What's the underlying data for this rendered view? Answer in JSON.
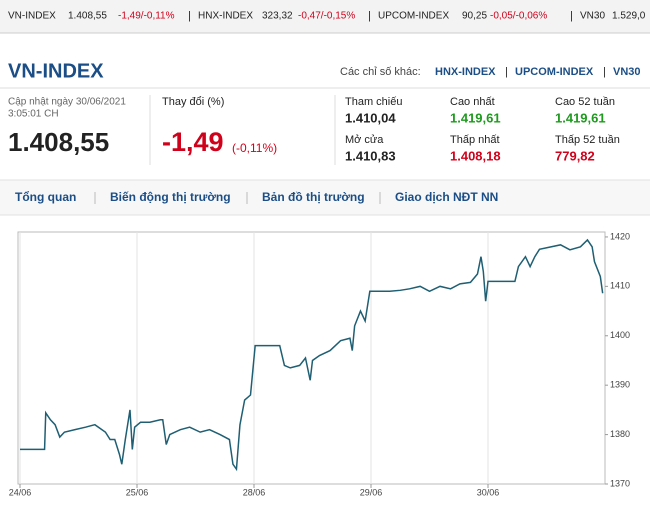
{
  "ticker": [
    {
      "name": "VN-INDEX",
      "value": "1.408,55",
      "change": "-1,49/-0,11%"
    },
    {
      "name": "HNX-INDEX",
      "value": "323,32",
      "change": "-0,47/-0,15%"
    },
    {
      "name": "UPCOM-INDEX",
      "value": "90,25",
      "change": "-0,05/-0,06%"
    },
    {
      "name": "VN30",
      "value": "1.529,0"
    }
  ],
  "header": {
    "title": "VN-INDEX",
    "others_label": "Các chỉ số khác:",
    "links": [
      "HNX-INDEX",
      "UPCOM-INDEX",
      "VN30"
    ]
  },
  "stats": {
    "updated": "Cập nhật ngày 30/06/2021",
    "time": "3:05:01 CH",
    "value": "1.408,55",
    "change_label": "Thay đổi (%)",
    "change": "-1,49",
    "change_pct": "(-0,11%)",
    "items": [
      {
        "label": "Tham chiếu",
        "value": "1.410,04"
      },
      {
        "label": "Cao nhất",
        "value": "1.419,61"
      },
      {
        "label": "Cao 52 tuần",
        "value": "1.419,61"
      },
      {
        "label": "Mở cửa",
        "value": "1.410,83"
      },
      {
        "label": "Thấp nhất",
        "value": "1.408,18"
      },
      {
        "label": "Thấp 52 tuần",
        "value": "779,82"
      }
    ]
  },
  "tabs": [
    "Tổng quan",
    "Biến động thị trường",
    "Bản đồ thị trường",
    "Giao dịch NĐT NN"
  ],
  "chart_data": {
    "type": "line",
    "color": "#1f5f73",
    "x": [
      0,
      0.21,
      0.22,
      0.26,
      0.3,
      0.34,
      0.38,
      0.47,
      0.56,
      0.64,
      0.73,
      0.77,
      0.81,
      0.85,
      0.87,
      0.9,
      0.94,
      0.96,
      0.98,
      1.03,
      1.11,
      1.2,
      1.22,
      1.25,
      1.28,
      1.37,
      1.45,
      1.54,
      1.62,
      1.71,
      1.79,
      1.82,
      1.85,
      1.88,
      1.92,
      1.97,
      2.01,
      2.22,
      2.26,
      2.31,
      2.39,
      2.44,
      2.48,
      2.5,
      2.56,
      2.65,
      2.74,
      2.82,
      2.84,
      2.86,
      2.91,
      2.95,
      2.99,
      3.16,
      3.25,
      3.33,
      3.42,
      3.5,
      3.59,
      3.68,
      3.76,
      3.85,
      3.91,
      3.94,
      3.96,
      3.98,
      4.0,
      4.23,
      4.26,
      4.32,
      4.36,
      4.4,
      4.44,
      4.62,
      4.7,
      4.79,
      4.85,
      4.89,
      4.91,
      4.96,
      4.98
    ],
    "values": [
      1377,
      1377,
      1384.4,
      1383,
      1382,
      1379.5,
      1380.5,
      1381,
      1381.5,
      1382,
      1380.5,
      1379,
      1379,
      1376,
      1374,
      1379,
      1385,
      1377,
      1381.5,
      1382.5,
      1382.5,
      1383,
      1383,
      1378,
      1380,
      1381,
      1381.5,
      1380.5,
      1381,
      1380,
      1379,
      1374,
      1373,
      1382,
      1387,
      1388,
      1398,
      1398,
      1394,
      1393.5,
      1394,
      1395.5,
      1391,
      1395,
      1396,
      1397,
      1399,
      1399.5,
      1397,
      1402,
      1405,
      1403,
      1409,
      1409,
      1409.2,
      1409.5,
      1410,
      1409,
      1410,
      1409.5,
      1410.5,
      1410.8,
      1412.5,
      1416,
      1413,
      1407,
      1411,
      1411,
      1414,
      1416,
      1414,
      1416,
      1417.5,
      1418.4,
      1417.4,
      1418,
      1419.4,
      1418,
      1415,
      1412,
      1408.6
    ],
    "xlim": [
      0,
      5
    ],
    "xticks": [
      {
        "value": 0,
        "label": "24/06"
      },
      {
        "value": 1,
        "label": "25/06"
      },
      {
        "value": 2,
        "label": "28/06"
      },
      {
        "value": 3,
        "label": "29/06"
      },
      {
        "value": 4,
        "label": "30/06"
      }
    ],
    "ylim": [
      1370,
      1421
    ],
    "yticks": [
      1370,
      1380,
      1390,
      1400,
      1410,
      1420
    ],
    "grid": true
  }
}
